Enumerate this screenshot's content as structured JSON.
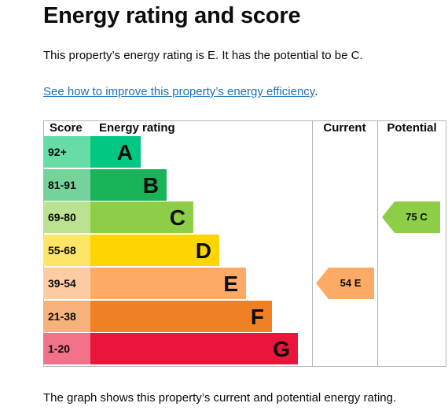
{
  "heading": "Energy rating and score",
  "summary": "This property’s energy rating is E. It has the potential to be C.",
  "improve_link": "See how to improve this property’s energy efficiency",
  "improve_link_suffix": ".",
  "table": {
    "headers": {
      "score": "Score",
      "rating": "Energy rating",
      "current": "Current",
      "potential": "Potential"
    },
    "bands": [
      {
        "score": "92+",
        "letter": "A",
        "color": "#00c781",
        "score_bg": "#66dda6"
      },
      {
        "score": "81-91",
        "letter": "B",
        "color": "#19b459",
        "score_bg": "#75d29b"
      },
      {
        "score": "69-80",
        "letter": "C",
        "color": "#8dce46",
        "score_bg": "#bbe290"
      },
      {
        "score": "55-68",
        "letter": "D",
        "color": "#ffd500",
        "score_bg": "#ffe566"
      },
      {
        "score": "39-54",
        "letter": "E",
        "color": "#fcaa65",
        "score_bg": "#fdcca3"
      },
      {
        "score": "21-38",
        "letter": "F",
        "color": "#ef8023",
        "score_bg": "#f5b37b"
      },
      {
        "score": "1-20",
        "letter": "G",
        "color": "#e9153b",
        "score_bg": "#f27389"
      }
    ],
    "current": {
      "score": "54",
      "letter": "E",
      "label": "54 E",
      "band_index": 4,
      "color": "#fcaa65"
    },
    "potential": {
      "score": "75",
      "letter": "C",
      "label": "75 C",
      "band_index": 2,
      "color": "#8dce46"
    }
  },
  "footer": "The graph shows this property’s current and potential energy rating."
}
